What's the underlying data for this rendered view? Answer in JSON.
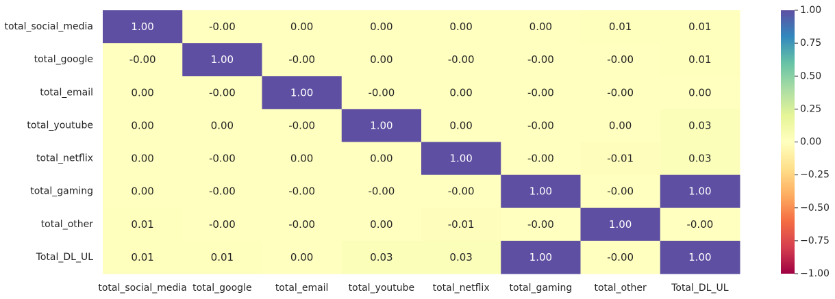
{
  "chart_data": {
    "type": "heatmap",
    "title": "",
    "xlabel": "",
    "ylabel": "",
    "colormap": "Spectral",
    "vmin": -1.0,
    "vmax": 1.0,
    "value_format": "0.00",
    "rows": [
      "total_social_media",
      "total_google",
      "total_email",
      "total_youtube",
      "total_netflix",
      "total_gaming",
      "total_other",
      "Total_DL_UL"
    ],
    "columns": [
      "total_social_media",
      "total_google",
      "total_email",
      "total_youtube",
      "total_netflix",
      "total_gaming",
      "total_other",
      "Total_DL_UL"
    ],
    "value_labels": [
      [
        "1.00",
        "-0.00",
        "0.00",
        "0.00",
        "0.00",
        "0.00",
        "0.01",
        "0.01"
      ],
      [
        "-0.00",
        "1.00",
        "-0.00",
        "0.00",
        "-0.00",
        "-0.00",
        "-0.00",
        "0.01"
      ],
      [
        "0.00",
        "-0.00",
        "1.00",
        "-0.00",
        "0.00",
        "-0.00",
        "-0.00",
        "0.00"
      ],
      [
        "0.00",
        "0.00",
        "-0.00",
        "1.00",
        "0.00",
        "-0.00",
        "0.00",
        "0.03"
      ],
      [
        "0.00",
        "-0.00",
        "0.00",
        "0.00",
        "1.00",
        "-0.00",
        "-0.01",
        "0.03"
      ],
      [
        "0.00",
        "-0.00",
        "-0.00",
        "-0.00",
        "-0.00",
        "1.00",
        "-0.00",
        "1.00"
      ],
      [
        "0.01",
        "-0.00",
        "-0.00",
        "0.00",
        "-0.01",
        "-0.00",
        "1.00",
        "-0.00"
      ],
      [
        "0.01",
        "0.01",
        "0.00",
        "0.03",
        "0.03",
        "1.00",
        "-0.00",
        "1.00"
      ]
    ],
    "colorbar": {
      "ticks": [
        1.0,
        0.75,
        0.5,
        0.25,
        0.0,
        -0.25,
        -0.5,
        -0.75,
        -1.0
      ],
      "tick_labels": [
        "1.00",
        "0.75",
        "0.50",
        "0.25",
        "0.00",
        "−0.25",
        "−0.50",
        "−0.75",
        "−1.00"
      ]
    },
    "grid": false
  }
}
